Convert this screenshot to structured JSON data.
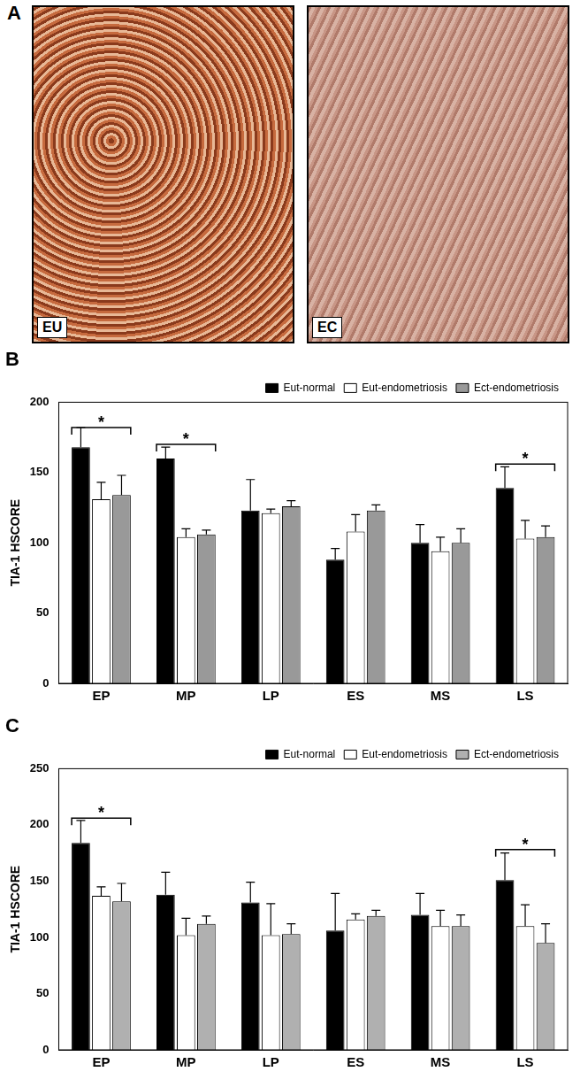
{
  "panel_a": {
    "label": "A",
    "images": [
      {
        "label": "EU"
      },
      {
        "label": "EC"
      }
    ]
  },
  "chart_data": [
    {
      "type": "bar",
      "title": "B",
      "categories": [
        "EP",
        "MP",
        "LP",
        "ES",
        "MS",
        "LS"
      ],
      "ylabel": "TIA-1 HSCORE",
      "ylim": [
        0,
        200
      ],
      "yticks": [
        0,
        50,
        100,
        150,
        200
      ],
      "grid": false,
      "legend": "top-right",
      "series": [
        {
          "name": "Eut-normal",
          "color": "#000000",
          "values": [
            168,
            160,
            123,
            88,
            100,
            139
          ],
          "error": [
            14,
            8,
            22,
            8,
            13,
            15
          ]
        },
        {
          "name": "Eut-endometriosis",
          "color": "#ffffff",
          "values": [
            131,
            104,
            121,
            108,
            94,
            103
          ],
          "error": [
            12,
            6,
            3,
            12,
            10,
            13
          ]
        },
        {
          "name": "Ect-endometriosis",
          "color": "#999999",
          "values": [
            134,
            106,
            126,
            123,
            100,
            104
          ],
          "error": [
            14,
            3,
            4,
            4,
            10,
            8
          ]
        }
      ],
      "annotations": [
        {
          "text": "*",
          "category": "EP",
          "y": 182
        },
        {
          "text": "*",
          "category": "MP",
          "y": 170
        },
        {
          "text": "*",
          "category": "LS",
          "y": 156
        }
      ]
    },
    {
      "type": "bar",
      "title": "C",
      "categories": [
        "EP",
        "MP",
        "LP",
        "ES",
        "MS",
        "LS"
      ],
      "ylabel": "TIA-1 HSCORE",
      "ylim": [
        0,
        250
      ],
      "yticks": [
        0,
        50,
        100,
        150,
        200,
        250
      ],
      "grid": false,
      "legend": "top-right",
      "series": [
        {
          "name": "Eut-normal",
          "color": "#000000",
          "values": [
            184,
            138,
            131,
            106,
            120,
            151
          ],
          "error": [
            20,
            20,
            18,
            33,
            19,
            24
          ]
        },
        {
          "name": "Eut-endometriosis",
          "color": "#ffffff",
          "values": [
            137,
            102,
            102,
            116,
            110,
            110
          ],
          "error": [
            8,
            15,
            28,
            5,
            14,
            19
          ]
        },
        {
          "name": "Ect-endometriosis",
          "color": "#b0b0b0",
          "values": [
            132,
            112,
            103,
            119,
            110,
            95
          ],
          "error": [
            16,
            7,
            9,
            5,
            10,
            17
          ]
        }
      ],
      "annotations": [
        {
          "text": "*",
          "category": "EP",
          "y": 206
        },
        {
          "text": "*",
          "category": "LS",
          "y": 178
        }
      ]
    }
  ]
}
